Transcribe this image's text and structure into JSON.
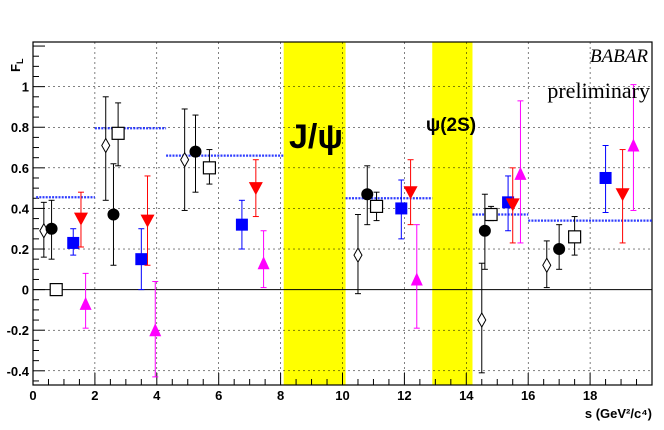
{
  "chart_data": {
    "type": "scatter",
    "xlabel": "s (GeV²/c⁴)",
    "ylabel": "F_L",
    "xlim": [
      0,
      20
    ],
    "ylim": [
      -0.47,
      1.22
    ],
    "grid": "dashed",
    "x_ticks": [
      "0",
      "2",
      "4",
      "6",
      "8",
      "10",
      "12",
      "14",
      "16",
      "18"
    ],
    "y_ticks": [
      "-0.4",
      "-0.2",
      "0",
      "0.2",
      "0.4",
      "0.6",
      "0.8",
      "1"
    ],
    "annotations": {
      "experiment": "BABAR",
      "status": "preliminary",
      "jpsi_label": "J/ψ",
      "psi2s_label": "ψ(2S)"
    },
    "vetoed_regions": [
      {
        "name": "J/psi",
        "x": [
          8.1,
          10.1
        ],
        "color": "#ffff00"
      },
      {
        "name": "psi(2S)",
        "x": [
          12.9,
          14.2
        ],
        "color": "#ffff00"
      }
    ],
    "prediction_bands": [
      {
        "x": [
          0.1,
          2.0
        ],
        "y": 0.455
      },
      {
        "x": [
          2.0,
          4.3
        ],
        "y": 0.795
      },
      {
        "x": [
          4.3,
          8.1
        ],
        "y": 0.66
      },
      {
        "x": [
          10.1,
          12.9
        ],
        "y": 0.45
      },
      {
        "x": [
          14.2,
          16.0
        ],
        "y": 0.37
      },
      {
        "x": [
          16.0,
          20.0
        ],
        "y": 0.34
      }
    ],
    "series": [
      {
        "marker": "open-diamond",
        "color": "#000000",
        "points": [
          {
            "x": 0.35,
            "y": 0.29,
            "lo": 0.16,
            "hi": 0.43
          },
          {
            "x": 2.35,
            "y": 0.71,
            "lo": 0.44,
            "hi": 0.95
          },
          {
            "x": 4.9,
            "y": 0.64,
            "lo": 0.39,
            "hi": 0.89
          },
          {
            "x": 10.5,
            "y": 0.17,
            "lo": -0.02,
            "hi": 0.37
          },
          {
            "x": 14.5,
            "y": -0.15,
            "lo": -0.41,
            "hi": 0.13
          },
          {
            "x": 16.6,
            "y": 0.12,
            "lo": 0.01,
            "hi": 0.24
          }
        ]
      },
      {
        "marker": "filled-circle",
        "color": "#000000",
        "points": [
          {
            "x": 0.6,
            "y": 0.3,
            "lo": 0.15,
            "hi": 0.44
          },
          {
            "x": 2.6,
            "y": 0.37,
            "lo": 0.12,
            "hi": 0.62
          },
          {
            "x": 5.25,
            "y": 0.68,
            "lo": 0.48,
            "hi": 0.86
          },
          {
            "x": 10.8,
            "y": 0.47,
            "lo": 0.32,
            "hi": 0.61
          },
          {
            "x": 14.6,
            "y": 0.29,
            "lo": 0.1,
            "hi": 0.47
          },
          {
            "x": 17.0,
            "y": 0.2,
            "lo": 0.1,
            "hi": 0.32
          }
        ]
      },
      {
        "marker": "open-square",
        "color": "#000000",
        "points": [
          {
            "x": 0.75,
            "y": 0.0,
            "lo": -0.02,
            "hi": 0.02
          },
          {
            "x": 2.75,
            "y": 0.77,
            "lo": 0.61,
            "hi": 0.92
          },
          {
            "x": 5.7,
            "y": 0.6,
            "lo": 0.52,
            "hi": 0.69
          },
          {
            "x": 11.1,
            "y": 0.41,
            "lo": 0.34,
            "hi": 0.48
          },
          {
            "x": 14.8,
            "y": 0.37,
            "lo": 0.34,
            "hi": 0.41
          },
          {
            "x": 17.5,
            "y": 0.26,
            "lo": 0.17,
            "hi": 0.36
          }
        ]
      },
      {
        "marker": "filled-square",
        "color": "#0000ff",
        "points": [
          {
            "x": 1.3,
            "y": 0.23,
            "lo": 0.17,
            "hi": 0.3
          },
          {
            "x": 3.5,
            "y": 0.15,
            "lo": 0.0,
            "hi": 0.3
          },
          {
            "x": 6.75,
            "y": 0.32,
            "lo": 0.2,
            "hi": 0.44
          },
          {
            "x": 11.9,
            "y": 0.4,
            "lo": 0.25,
            "hi": 0.54
          },
          {
            "x": 15.35,
            "y": 0.43,
            "lo": 0.29,
            "hi": 0.56
          },
          {
            "x": 18.5,
            "y": 0.55,
            "lo": 0.38,
            "hi": 0.71
          }
        ]
      },
      {
        "marker": "filled-triangle-down",
        "color": "#ff0000",
        "points": [
          {
            "x": 1.55,
            "y": 0.35,
            "lo": 0.21,
            "hi": 0.48
          },
          {
            "x": 3.7,
            "y": 0.34,
            "lo": 0.12,
            "hi": 0.56
          },
          {
            "x": 7.2,
            "y": 0.5,
            "lo": 0.36,
            "hi": 0.64
          },
          {
            "x": 12.2,
            "y": 0.48,
            "lo": 0.32,
            "hi": 0.64
          },
          {
            "x": 15.5,
            "y": 0.42,
            "lo": 0.23,
            "hi": 0.6
          },
          {
            "x": 19.05,
            "y": 0.47,
            "lo": 0.23,
            "hi": 0.69
          }
        ]
      },
      {
        "marker": "filled-triangle-up",
        "color": "#ff00ff",
        "points": [
          {
            "x": 1.7,
            "y": -0.07,
            "lo": -0.19,
            "hi": 0.08
          },
          {
            "x": 3.95,
            "y": -0.2,
            "lo": -0.43,
            "hi": 0.04
          },
          {
            "x": 7.45,
            "y": 0.13,
            "lo": 0.01,
            "hi": 0.29
          },
          {
            "x": 12.4,
            "y": 0.05,
            "lo": -0.19,
            "hi": 0.32
          },
          {
            "x": 15.75,
            "y": 0.57,
            "lo": 0.23,
            "hi": 0.93
          },
          {
            "x": 19.4,
            "y": 0.71,
            "lo": 0.39,
            "hi": 1.01
          }
        ]
      }
    ]
  }
}
